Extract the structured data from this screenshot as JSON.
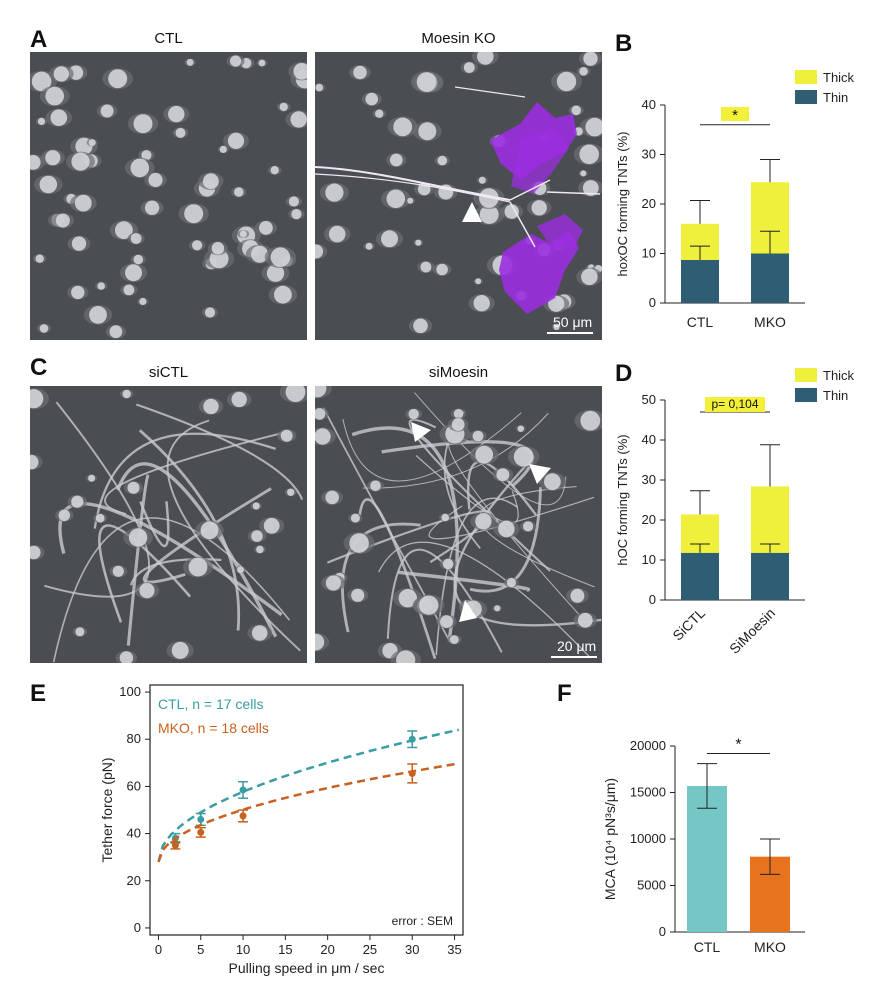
{
  "panels": {
    "A": {
      "letter": "A",
      "left_title": "CTL",
      "right_title": "Moesin KO",
      "scale_label": "50 μm"
    },
    "B": {
      "letter": "B",
      "ylabel": "hoxOC forming TNTs (%)",
      "significance": "*",
      "legend": [
        "Thick",
        "Thin"
      ]
    },
    "C": {
      "letter": "C",
      "left_title": "siCTL",
      "right_title": "siMoesin",
      "scale_label": "20 μm"
    },
    "D": {
      "letter": "D",
      "ylabel": "hOC forming TNTs (%)",
      "significance": "p= 0,104",
      "legend": [
        "Thick",
        "Thin"
      ]
    },
    "E": {
      "letter": "E",
      "xlabel": "Pulling speed in μm / sec",
      "ylabel": "Tether force (pN)",
      "legend": [
        "CTL, n = 17 cells",
        "MKO, n = 18 cells"
      ],
      "note": "error : SEM"
    },
    "F": {
      "letter": "F",
      "ylabel": "MCA (10⁴ pN³s/μm)",
      "significance": "*"
    }
  },
  "colors": {
    "thick": "#eef03c",
    "thin": "#2f5d73",
    "ctl_line": "#3a9da3",
    "mko_line": "#c8601e",
    "ctl_bar": "#74c7c5",
    "mko_bar": "#e8731f",
    "highlight": "#f3f03a",
    "pseudo_color": "#9b2ee0"
  },
  "chart_data": [
    {
      "id": "B",
      "type": "bar",
      "stacked": true,
      "categories": [
        "CTL",
        "MKO"
      ],
      "series": [
        {
          "name": "Thin",
          "values": [
            8.7,
            10.0
          ],
          "error": [
            2.8,
            4.5
          ]
        },
        {
          "name": "Thick",
          "values": [
            7.3,
            14.4
          ],
          "error": [
            4.7,
            4.6
          ]
        }
      ],
      "ylabel": "hoxOC forming TNTs (%)",
      "ylim": [
        0,
        40
      ],
      "yticks": [
        0,
        10,
        20,
        30,
        40
      ],
      "legend_position": "top-right",
      "annotation": "*"
    },
    {
      "id": "D",
      "type": "bar",
      "stacked": true,
      "categories": [
        "SiCTL",
        "SiMoesin"
      ],
      "series": [
        {
          "name": "Thin",
          "values": [
            11.8,
            11.8
          ],
          "error": [
            2.2,
            2.2
          ]
        },
        {
          "name": "Thick",
          "values": [
            9.6,
            16.6
          ],
          "error": [
            5.9,
            10.4
          ]
        }
      ],
      "ylabel": "hOC forming TNTs (%)",
      "ylim": [
        0,
        50
      ],
      "yticks": [
        0,
        10,
        20,
        30,
        40,
        50
      ],
      "legend_position": "top-right",
      "annotation": "p= 0,104"
    },
    {
      "id": "E",
      "type": "line",
      "x": [
        2,
        5,
        10,
        30
      ],
      "series": [
        {
          "name": "CTL, n = 17 cells",
          "values": [
            38,
            46,
            58.5,
            80
          ],
          "error": [
            2,
            2.5,
            3.5,
            3.5
          ]
        },
        {
          "name": "MKO, n = 18 cells",
          "values": [
            35,
            40.5,
            47.5,
            65.5
          ],
          "error": [
            1.5,
            2,
            2.5,
            4
          ]
        }
      ],
      "xlabel": "Pulling speed in μm / sec",
      "ylabel": "Tether force (pN)",
      "xlim": [
        -1,
        36
      ],
      "ylim": [
        -3,
        103
      ],
      "xticks": [
        0,
        5,
        10,
        15,
        20,
        25,
        30,
        35
      ],
      "yticks": [
        0,
        20,
        40,
        60,
        80,
        100
      ],
      "legend_position": "top-left",
      "annotation": "error : SEM"
    },
    {
      "id": "F",
      "type": "bar",
      "categories": [
        "CTL",
        "MKO"
      ],
      "values": [
        15700,
        8100
      ],
      "error": [
        2400,
        1900
      ],
      "ylabel": "MCA (10⁴ pN³s/μm)",
      "ylim": [
        0,
        20000
      ],
      "yticks": [
        0,
        5000,
        10000,
        15000,
        20000
      ],
      "annotation": "*"
    }
  ]
}
